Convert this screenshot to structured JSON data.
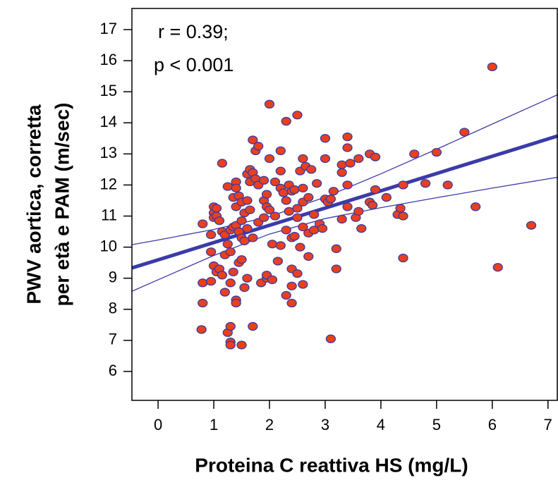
{
  "chart_data": {
    "type": "scatter",
    "x_label": "Proteina C reattiva HS (mg/L)",
    "y_label": [
      "PWV aortica, corretta",
      "per età e PAM (m/sec)"
    ],
    "annotations": [
      "r = 0.39;",
      "p < 0.001"
    ],
    "xlim": [
      -0.47,
      7.18
    ],
    "ylim": [
      5.07,
      17.68
    ],
    "xticks": [
      0,
      1,
      2,
      3,
      4,
      5,
      6,
      7
    ],
    "yticks": [
      6,
      7,
      8,
      9,
      10,
      11,
      12,
      13,
      14,
      15,
      16,
      17
    ],
    "point_color": "#e8401f",
    "point_edge_color": "#3a3aa0",
    "line_color": "#3b3ba8",
    "x": [
      0.8,
      0.8,
      0.8,
      0.78,
      0.95,
      0.95,
      0.95,
      1.0,
      1.0,
      1.0,
      1.0,
      1.05,
      1.05,
      1.05,
      1.1,
      1.1,
      1.15,
      1.15,
      1.15,
      1.2,
      1.2,
      1.2,
      1.25,
      1.25,
      1.25,
      1.3,
      1.3,
      1.3,
      1.3,
      1.3,
      1.3,
      1.35,
      1.35,
      1.35,
      1.4,
      1.4,
      1.4,
      1.4,
      1.4,
      1.4,
      1.45,
      1.45,
      1.45,
      1.5,
      1.5,
      1.5,
      1.5,
      1.5,
      1.55,
      1.55,
      1.55,
      1.6,
      1.6,
      1.6,
      1.6,
      1.65,
      1.65,
      1.65,
      1.7,
      1.7,
      1.7,
      1.7,
      1.75,
      1.75,
      1.8,
      1.8,
      1.8,
      1.85,
      1.9,
      1.9,
      1.9,
      1.95,
      1.95,
      1.95,
      1.95,
      2.0,
      2.0,
      2.0,
      2.05,
      2.05,
      2.1,
      2.1,
      2.15,
      2.2,
      2.2,
      2.2,
      2.2,
      2.25,
      2.3,
      2.3,
      2.3,
      2.3,
      2.35,
      2.35,
      2.4,
      2.4,
      2.4,
      2.4,
      2.4,
      2.45,
      2.45,
      2.5,
      2.5,
      2.5,
      2.5,
      2.55,
      2.55,
      2.6,
      2.6,
      2.6,
      2.6,
      2.6,
      2.65,
      2.7,
      2.7,
      2.7,
      2.75,
      2.8,
      2.8,
      2.85,
      2.9,
      2.95,
      3.0,
      3.0,
      3.0,
      3.05,
      3.1,
      3.1,
      3.15,
      3.2,
      3.2,
      3.3,
      3.3,
      3.3,
      3.4,
      3.4,
      3.4,
      3.4,
      3.45,
      3.55,
      3.6,
      3.6,
      3.65,
      3.8,
      3.8,
      3.85,
      3.9,
      3.9,
      4.1,
      4.3,
      4.35,
      4.4,
      4.4,
      4.4,
      4.6,
      4.8,
      5.0,
      5.2,
      5.5,
      5.7,
      6.0,
      6.1,
      6.7
    ],
    "y": [
      10.75,
      8.85,
      8.2,
      7.35,
      10.4,
      9.85,
      8.9,
      11.3,
      11.1,
      10.95,
      9.4,
      11.25,
      11.0,
      9.2,
      10.85,
      9.3,
      12.7,
      10.5,
      9.1,
      10.4,
      9.75,
      8.55,
      11.95,
      10.1,
      7.25,
      10.55,
      9.85,
      8.85,
      7.45,
      6.95,
      6.85,
      11.6,
      10.65,
      9.2,
      12.1,
      11.9,
      11.3,
      10.7,
      8.3,
      8.2,
      11.65,
      10.5,
      9.5,
      11.45,
      10.85,
      10.3,
      9.6,
      6.85,
      11.1,
      10.2,
      8.7,
      12.35,
      11.5,
      10.6,
      9.0,
      12.5,
      12.1,
      11.2,
      13.45,
      12.4,
      10.3,
      7.45,
      13.1,
      12.2,
      13.25,
      12.0,
      10.8,
      8.85,
      12.15,
      11.5,
      10.95,
      11.7,
      11.3,
      9.0,
      9.1,
      14.6,
      12.85,
      11.2,
      10.1,
      8.95,
      12.1,
      11.0,
      9.55,
      13.1,
      12.45,
      11.9,
      10.05,
      11.75,
      14.05,
      11.5,
      10.55,
      8.45,
      12.0,
      11.15,
      11.8,
      10.3,
      9.3,
      8.75,
      8.2,
      11.85,
      10.35,
      14.25,
      11.25,
      10.95,
      9.15,
      12.45,
      10.0,
      12.85,
      11.9,
      11.45,
      10.65,
      8.8,
      12.6,
      11.6,
      10.45,
      9.7,
      12.5,
      11.05,
      10.55,
      12.05,
      10.75,
      10.6,
      13.5,
      12.85,
      11.55,
      11.45,
      11.55,
      7.05,
      11.8,
      9.95,
      9.3,
      12.65,
      12.4,
      10.9,
      13.55,
      13.2,
      12.0,
      11.3,
      12.7,
      10.95,
      12.85,
      11.15,
      10.6,
      13.0,
      11.45,
      11.35,
      12.9,
      11.85,
      11.6,
      11.05,
      11.25,
      12.0,
      11.0,
      9.65,
      13.0,
      12.05,
      13.05,
      12.0,
      13.7,
      11.3,
      15.8,
      9.35,
      10.7
    ],
    "fit": {
      "x": [
        -0.47,
        7.18
      ],
      "y": [
        9.33,
        13.58
      ]
    },
    "ci_upper": {
      "x": [
        -0.47,
        0,
        1,
        2,
        3,
        4,
        5,
        6,
        7.18
      ],
      "y": [
        10.08,
        10.23,
        10.57,
        10.98,
        11.61,
        12.36,
        13.15,
        13.96,
        14.91
      ]
    },
    "ci_lower": {
      "x": [
        -0.47,
        0,
        1,
        2,
        3,
        4,
        5,
        6,
        7.18
      ],
      "y": [
        8.58,
        8.95,
        9.73,
        10.42,
        10.92,
        11.27,
        11.59,
        11.9,
        12.25
      ]
    }
  }
}
